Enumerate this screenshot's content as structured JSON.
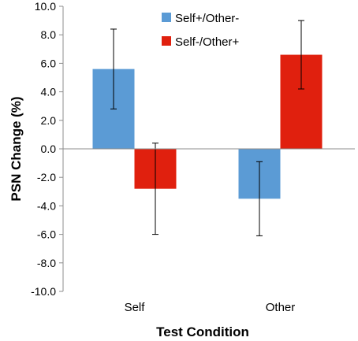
{
  "chart_data": {
    "type": "bar",
    "title": "",
    "xlabel": "Test Condition",
    "ylabel": "PSN Change (%)",
    "categories": [
      "Self",
      "Other"
    ],
    "ylim": [
      -10.0,
      10.0
    ],
    "yticks": [
      "10.0",
      "8.0",
      "6.0",
      "4.0",
      "2.0",
      "0.0",
      "-2.0",
      "-4.0",
      "-6.0",
      "-8.0",
      "-10.0"
    ],
    "grid": false,
    "legend_position": "top",
    "series": [
      {
        "name": "Self+/Other-",
        "color": "#5B9BD5",
        "values": [
          5.6,
          -3.5
        ],
        "error": [
          2.8,
          2.6
        ]
      },
      {
        "name": "Self-/Other+",
        "color": "#E0200E",
        "values": [
          -2.8,
          6.6
        ],
        "error": [
          3.2,
          2.4
        ]
      }
    ]
  }
}
